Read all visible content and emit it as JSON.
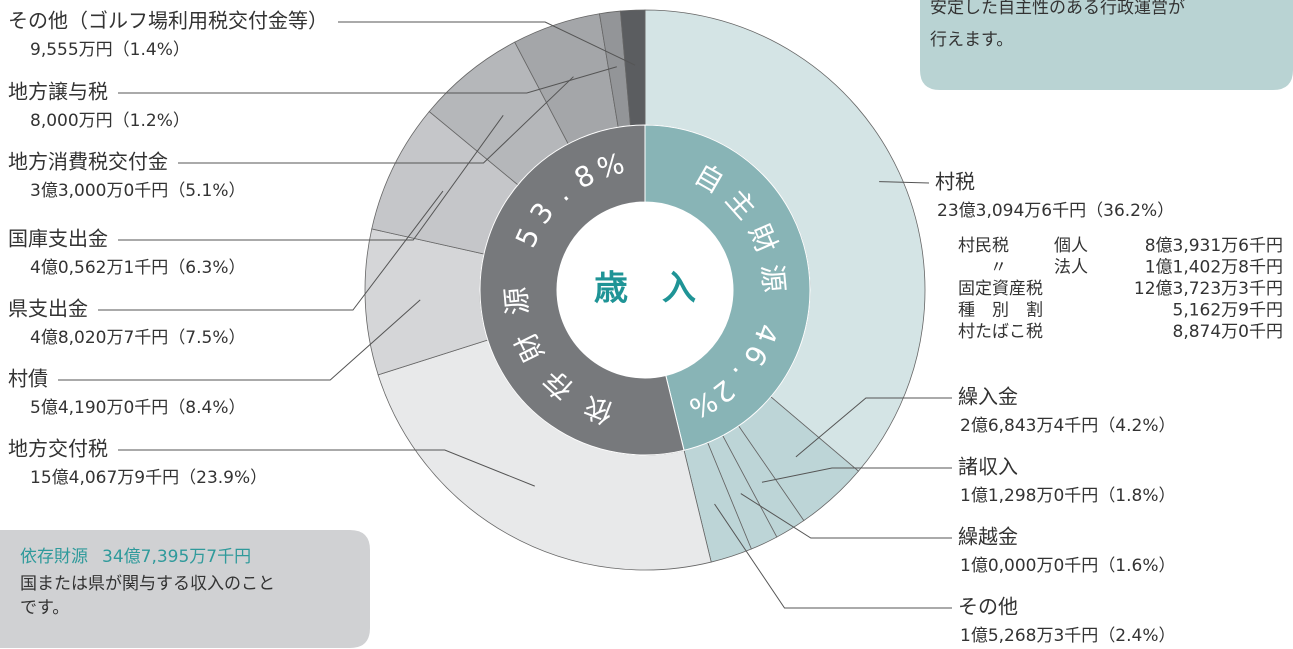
{
  "chart_data": {
    "type": "donut",
    "center_label": "歳　入",
    "categories": [
      "村税",
      "繰入金",
      "諸収入",
      "繰越金",
      "その他",
      "地方交付税",
      "村債",
      "県支出金",
      "国庫支出金",
      "地方消費税交付金",
      "地方譲与税",
      "その他（ゴルフ場利用税交付金等）"
    ],
    "amounts": [
      "23億3,094万6千円",
      "2億6,843万4千円",
      "1億1,298万0千円",
      "1億0,000万0千円",
      "1億5,268万3千円",
      "15億4,067万9千円",
      "5億4,190万0千円",
      "4億8,020万7千円",
      "4億0,562万1千円",
      "3億3,000万0千円",
      "8,000万円",
      "9,555万円"
    ],
    "values": [
      36.2,
      4.2,
      1.8,
      1.6,
      2.4,
      23.9,
      8.4,
      7.5,
      6.3,
      5.1,
      1.2,
      1.4
    ],
    "value_labels": [
      "（36.2%）",
      "（4.2%）",
      "（1.8%）",
      "（1.6%）",
      "（2.4%）",
      "（23.9%）",
      "（8.4%）",
      "（7.5%）",
      "（6.3%）",
      "（5.1%）",
      "（1.2%）",
      "（1.4%）"
    ],
    "colors": [
      "#d4e4e5",
      "#bdd5d7",
      "#bdd5d7",
      "#bdd5d7",
      "#bdd5d7",
      "#e8e9ea",
      "#d5d6d8",
      "#c5c6c9",
      "#b5b7ba",
      "#a4a6a9",
      "#939598",
      "#5b5d60"
    ],
    "inner": {
      "categories": [
        "自主財源",
        "依存財源"
      ],
      "values": [
        46.2,
        53.8
      ],
      "value_labels": [
        "46.2%",
        "53.8%"
      ],
      "colors": [
        "#88b4b6",
        "#77797c"
      ]
    },
    "breakdown": [
      [
        "村民税",
        "個人",
        "8億3,931万6千円"
      ],
      [
        "〃",
        "法人",
        "1億1,402万8千円"
      ],
      [
        "固定資産税",
        "",
        "12億3,723万3千円"
      ],
      [
        "種　別　割",
        "",
        "5,162万9千円"
      ],
      [
        "村たばこ税",
        "",
        "8,874万0千円"
      ]
    ],
    "top_note": [
      "安定した自主性のある行政運営が",
      "行えます。"
    ],
    "bottom_note": {
      "title": "依存財源",
      "amount": "34億7,395万7千円",
      "lines": [
        "国または県が関与する収入のこと",
        "です。"
      ]
    }
  }
}
